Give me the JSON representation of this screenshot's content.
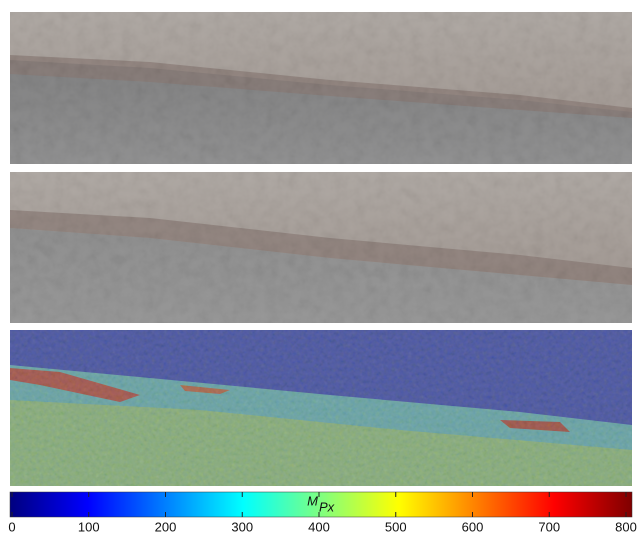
{
  "colorbar": {
    "label": {
      "symbol": "M",
      "subscript": "Px"
    },
    "lim": [
      0,
      800
    ],
    "ticks": [
      0,
      100,
      200,
      300,
      400,
      500,
      600,
      700,
      800
    ],
    "colormap": "jet"
  }
}
